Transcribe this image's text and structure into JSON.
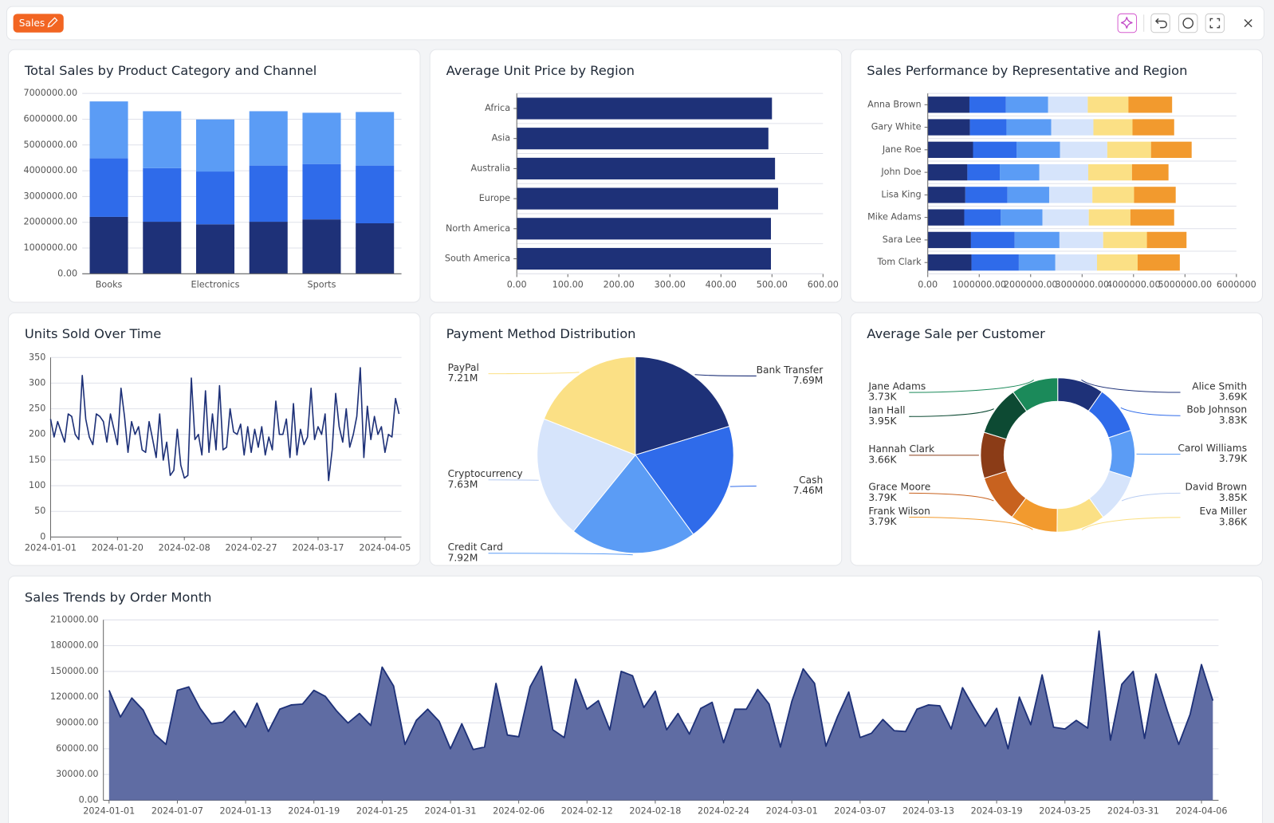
{
  "header": {
    "title": "Sales"
  },
  "chart_data": [
    {
      "type": "bar",
      "title": "Total Sales by Product Category and Channel",
      "stacked": true,
      "orientation": "vertical",
      "grid": true,
      "categories": [
        "Books",
        null,
        "Electronics",
        null,
        "Sports",
        null
      ],
      "series": [
        {
          "color": "#1e3178",
          "values": [
            2210000,
            2020000,
            1920000,
            2020000,
            2110000,
            1960000
          ]
        },
        {
          "color": "#2f6bea",
          "values": [
            2270000,
            2080000,
            2050000,
            2180000,
            2150000,
            2240000
          ]
        },
        {
          "color": "#5b9cf5",
          "values": [
            2210000,
            2210000,
            2020000,
            2110000,
            1990000,
            2080000
          ]
        }
      ],
      "ylim": [
        0,
        7000000
      ],
      "yticks": [
        {
          "value": 0,
          "label": "0.00"
        },
        {
          "value": 1000000,
          "label": "1000000.00"
        },
        {
          "value": 2000000,
          "label": "2000000.00"
        },
        {
          "value": 3000000,
          "label": "3000000.00"
        },
        {
          "value": 4000000,
          "label": "4000000.00"
        },
        {
          "value": 5000000,
          "label": "5000000.00"
        },
        {
          "value": 6000000,
          "label": "6000000.00"
        },
        {
          "value": 7000000,
          "label": "7000000.00"
        }
      ]
    },
    {
      "type": "bar",
      "title": "Average Unit Price by Region",
      "stacked": false,
      "orientation": "horizontal",
      "grid": true,
      "categories": [
        "Africa",
        "Asia",
        "Australia",
        "Europe",
        "North America",
        "South America"
      ],
      "values": [
        500,
        493,
        506,
        512,
        498,
        498
      ],
      "color": "#1e3178",
      "xlim": [
        0,
        600
      ],
      "xticks": [
        {
          "value": 0,
          "label": "0.00"
        },
        {
          "value": 100,
          "label": "100.00"
        },
        {
          "value": 200,
          "label": "200.00"
        },
        {
          "value": 300,
          "label": "300.00"
        },
        {
          "value": 400,
          "label": "400.00"
        },
        {
          "value": 500,
          "label": "500.00"
        },
        {
          "value": 600,
          "label": "600.00"
        }
      ]
    },
    {
      "type": "bar",
      "title": "Sales Performance by Representative and Region",
      "stacked": true,
      "orientation": "horizontal",
      "grid": true,
      "categories": [
        "Anna Brown",
        "Gary White",
        "Jane Roe",
        "John Doe",
        "Lisa King",
        "Mike Adams",
        "Sara Lee",
        "Tom Clark"
      ],
      "series": [
        {
          "color": "#1e3178",
          "values": [
            810000,
            820000,
            880000,
            770000,
            730000,
            710000,
            840000,
            850000
          ]
        },
        {
          "color": "#2f6bea",
          "values": [
            710000,
            710000,
            850000,
            630000,
            820000,
            710000,
            850000,
            920000
          ]
        },
        {
          "color": "#5b9cf5",
          "values": [
            820000,
            870000,
            840000,
            770000,
            810000,
            810000,
            870000,
            710000
          ]
        },
        {
          "color": "#d6e4fb",
          "values": [
            770000,
            820000,
            920000,
            950000,
            840000,
            900000,
            850000,
            810000
          ]
        },
        {
          "color": "#fbe085",
          "values": [
            790000,
            760000,
            850000,
            850000,
            810000,
            810000,
            850000,
            790000
          ]
        },
        {
          "color": "#f29a2e",
          "values": [
            850000,
            810000,
            790000,
            710000,
            810000,
            850000,
            770000,
            820000
          ]
        }
      ],
      "xlim": [
        0,
        6000000
      ],
      "xticks": [
        {
          "value": 0,
          "label": "0.00"
        },
        {
          "value": 1000000,
          "label": "1000000.00"
        },
        {
          "value": 2000000,
          "label": "2000000.00"
        },
        {
          "value": 3000000,
          "label": "3000000.00"
        },
        {
          "value": 4000000,
          "label": "4000000.00"
        },
        {
          "value": 5000000,
          "label": "5000000.00"
        },
        {
          "value": 6000000,
          "label": "6000000"
        }
      ]
    },
    {
      "type": "line",
      "title": "Units Sold Over Time",
      "grid": true,
      "color": "#1e3178",
      "x": [
        "2024-01-01",
        "2024-01-02",
        "2024-01-03",
        "2024-01-04",
        "2024-01-05",
        "2024-01-06",
        "2024-01-07",
        "2024-01-08",
        "2024-01-09",
        "2024-01-10",
        "2024-01-11",
        "2024-01-12",
        "2024-01-13",
        "2024-01-14",
        "2024-01-15",
        "2024-01-16",
        "2024-01-17",
        "2024-01-18",
        "2024-01-19",
        "2024-01-20",
        "2024-01-21",
        "2024-01-22",
        "2024-01-23",
        "2024-01-24",
        "2024-01-25",
        "2024-01-26",
        "2024-01-27",
        "2024-01-28",
        "2024-01-29",
        "2024-01-30",
        "2024-01-31",
        "2024-02-01",
        "2024-02-02",
        "2024-02-03",
        "2024-02-04",
        "2024-02-05",
        "2024-02-06",
        "2024-02-07",
        "2024-02-08",
        "2024-02-09",
        "2024-02-10",
        "2024-02-11",
        "2024-02-12",
        "2024-02-13",
        "2024-02-14",
        "2024-02-15",
        "2024-02-16",
        "2024-02-17",
        "2024-02-18",
        "2024-02-19",
        "2024-02-20",
        "2024-02-21",
        "2024-02-22",
        "2024-02-23",
        "2024-02-24",
        "2024-02-25",
        "2024-02-26",
        "2024-02-27",
        "2024-02-28",
        "2024-02-29",
        "2024-03-01",
        "2024-03-02",
        "2024-03-03",
        "2024-03-04",
        "2024-03-05",
        "2024-03-06",
        "2024-03-07",
        "2024-03-08",
        "2024-03-09",
        "2024-03-10",
        "2024-03-11",
        "2024-03-12",
        "2024-03-13",
        "2024-03-14",
        "2024-03-15",
        "2024-03-16",
        "2024-03-17",
        "2024-03-18",
        "2024-03-19",
        "2024-03-20",
        "2024-03-21",
        "2024-03-22",
        "2024-03-23",
        "2024-03-24",
        "2024-03-25",
        "2024-03-26",
        "2024-03-27",
        "2024-03-28",
        "2024-03-29",
        "2024-03-30",
        "2024-03-31",
        "2024-04-01",
        "2024-04-02",
        "2024-04-03",
        "2024-04-04",
        "2024-04-05",
        "2024-04-06",
        "2024-04-07",
        "2024-04-08",
        "2024-04-09"
      ],
      "values": [
        230,
        195,
        225,
        205,
        185,
        240,
        235,
        200,
        190,
        315,
        230,
        195,
        180,
        240,
        235,
        225,
        185,
        240,
        210,
        180,
        290,
        235,
        165,
        225,
        200,
        215,
        170,
        165,
        225,
        190,
        155,
        240,
        150,
        185,
        120,
        130,
        210,
        140,
        115,
        120,
        310,
        190,
        200,
        160,
        285,
        165,
        240,
        170,
        295,
        170,
        175,
        250,
        205,
        200,
        220,
        160,
        215,
        165,
        210,
        175,
        215,
        160,
        195,
        170,
        265,
        200,
        200,
        230,
        155,
        260,
        160,
        210,
        180,
        195,
        290,
        190,
        215,
        200,
        240,
        110,
        170,
        280,
        215,
        185,
        250,
        175,
        200,
        235,
        330,
        155,
        255,
        190,
        235,
        200,
        215,
        165,
        200,
        195,
        270,
        240
      ],
      "xticks": [
        "2024-01-01",
        "2024-01-20",
        "2024-02-08",
        "2024-02-27",
        "2024-03-17",
        "2024-04-05"
      ],
      "ylim": [
        0,
        350
      ],
      "yticks": [
        0,
        50,
        100,
        150,
        200,
        250,
        300,
        350
      ]
    },
    {
      "type": "pie",
      "title": "Payment Method Distribution",
      "categories": [
        "Bank Transfer",
        "Cash",
        "Credit Card",
        "Cryptocurrency",
        "PayPal"
      ],
      "values": [
        7690000,
        7460000,
        7920000,
        7630000,
        7210000
      ],
      "value_labels": [
        "7.69M",
        "7.46M",
        "7.92M",
        "7.63M",
        "7.21M"
      ],
      "colors": [
        "#1e3178",
        "#2f6bea",
        "#5b9cf5",
        "#d6e4fb",
        "#fbe085"
      ]
    },
    {
      "type": "donut",
      "title": "Average Sale per Customer",
      "categories": [
        "Alice Smith",
        "Bob Johnson",
        "Carol Williams",
        "David Brown",
        "Eva Miller",
        "Frank Wilson",
        "Grace Moore",
        "Hannah Clark",
        "Ian Hall",
        "Jane Adams"
      ],
      "values": [
        3690,
        3830,
        3790,
        3850,
        3860,
        3790,
        3790,
        3660,
        3950,
        3730
      ],
      "value_labels": [
        "3.69K",
        "3.83K",
        "3.79K",
        "3.85K",
        "3.86K",
        "3.79K",
        "3.79K",
        "3.66K",
        "3.95K",
        "3.73K"
      ],
      "colors": [
        "#1e3178",
        "#2f6bea",
        "#5b9cf5",
        "#d6e4fb",
        "#fbe085",
        "#f29a2e",
        "#c8621f",
        "#8b3c17",
        "#0d4a33",
        "#1b8a5a"
      ]
    },
    {
      "type": "area",
      "title": "Sales Trends by Order Month",
      "grid": true,
      "color": "#1e3178",
      "fill": "#5f6ca3",
      "x": [
        "2024-01-01",
        "2024-01-02",
        "2024-01-03",
        "2024-01-04",
        "2024-01-05",
        "2024-01-06",
        "2024-01-07",
        "2024-01-08",
        "2024-01-09",
        "2024-01-10",
        "2024-01-11",
        "2024-01-12",
        "2024-01-13",
        "2024-01-14",
        "2024-01-15",
        "2024-01-16",
        "2024-01-17",
        "2024-01-18",
        "2024-01-19",
        "2024-01-20",
        "2024-01-21",
        "2024-01-22",
        "2024-01-23",
        "2024-01-24",
        "2024-01-25",
        "2024-01-26",
        "2024-01-27",
        "2024-01-28",
        "2024-01-29",
        "2024-01-30",
        "2024-01-31",
        "2024-02-01",
        "2024-02-02",
        "2024-02-03",
        "2024-02-04",
        "2024-02-05",
        "2024-02-06",
        "2024-02-07",
        "2024-02-08",
        "2024-02-09",
        "2024-02-10",
        "2024-02-11",
        "2024-02-12",
        "2024-02-13",
        "2024-02-14",
        "2024-02-15",
        "2024-02-16",
        "2024-02-17",
        "2024-02-18",
        "2024-02-19",
        "2024-02-20",
        "2024-02-21",
        "2024-02-22",
        "2024-02-23",
        "2024-02-24",
        "2024-02-25",
        "2024-02-26",
        "2024-02-27",
        "2024-02-28",
        "2024-02-29",
        "2024-03-01",
        "2024-03-02",
        "2024-03-03",
        "2024-03-04",
        "2024-03-05",
        "2024-03-06",
        "2024-03-07",
        "2024-03-08",
        "2024-03-09",
        "2024-03-10",
        "2024-03-11",
        "2024-03-12",
        "2024-03-13",
        "2024-03-14",
        "2024-03-15",
        "2024-03-16",
        "2024-03-17",
        "2024-03-18",
        "2024-03-19",
        "2024-03-20",
        "2024-03-21",
        "2024-03-22",
        "2024-03-23",
        "2024-03-24",
        "2024-03-25",
        "2024-03-26",
        "2024-03-27",
        "2024-03-28",
        "2024-03-29",
        "2024-03-30",
        "2024-03-31",
        "2024-04-01",
        "2024-04-02",
        "2024-04-03",
        "2024-04-04",
        "2024-04-05",
        "2024-04-06",
        "2024-04-07"
      ],
      "values": [
        128000,
        97000,
        119000,
        105000,
        77000,
        65000,
        128000,
        132000,
        107000,
        89000,
        91000,
        104000,
        85000,
        113000,
        80000,
        106000,
        111000,
        112000,
        128000,
        121000,
        104000,
        90000,
        101000,
        87000,
        155000,
        133000,
        65000,
        93000,
        106000,
        92000,
        60000,
        89000,
        59000,
        62000,
        136000,
        76000,
        74000,
        132000,
        156000,
        82000,
        73000,
        141000,
        106000,
        116000,
        82000,
        150000,
        145000,
        108000,
        127000,
        82000,
        101000,
        77000,
        107000,
        114000,
        67000,
        106000,
        106000,
        129000,
        112000,
        62000,
        115000,
        153000,
        136000,
        63000,
        97000,
        126000,
        73000,
        78000,
        94000,
        81000,
        80000,
        106000,
        111000,
        110000,
        83000,
        131000,
        108000,
        86000,
        107000,
        60000,
        120000,
        88000,
        146000,
        85000,
        83000,
        93000,
        84000,
        197000,
        70000,
        135000,
        150000,
        72000,
        147000,
        104000,
        65000,
        100000,
        158000,
        116000
      ],
      "xticks": [
        "2024-01-01",
        "2024-01-07",
        "2024-01-13",
        "2024-01-19",
        "2024-01-25",
        "2024-01-31",
        "2024-02-06",
        "2024-02-12",
        "2024-02-18",
        "2024-02-24",
        "2024-03-01",
        "2024-03-07",
        "2024-03-13",
        "2024-03-19",
        "2024-03-25",
        "2024-03-31",
        "2024-04-06"
      ],
      "ylim": [
        0,
        210000
      ],
      "yticks": [
        {
          "value": 0,
          "label": "0.00"
        },
        {
          "value": 30000,
          "label": "30000.00"
        },
        {
          "value": 60000,
          "label": "60000.00"
        },
        {
          "value": 90000,
          "label": "90000.00"
        },
        {
          "value": 120000,
          "label": "120000.00"
        },
        {
          "value": 150000,
          "label": "150000.00"
        },
        {
          "value": 180000,
          "label": "180000.00"
        },
        {
          "value": 210000,
          "label": "210000.00"
        }
      ]
    }
  ]
}
